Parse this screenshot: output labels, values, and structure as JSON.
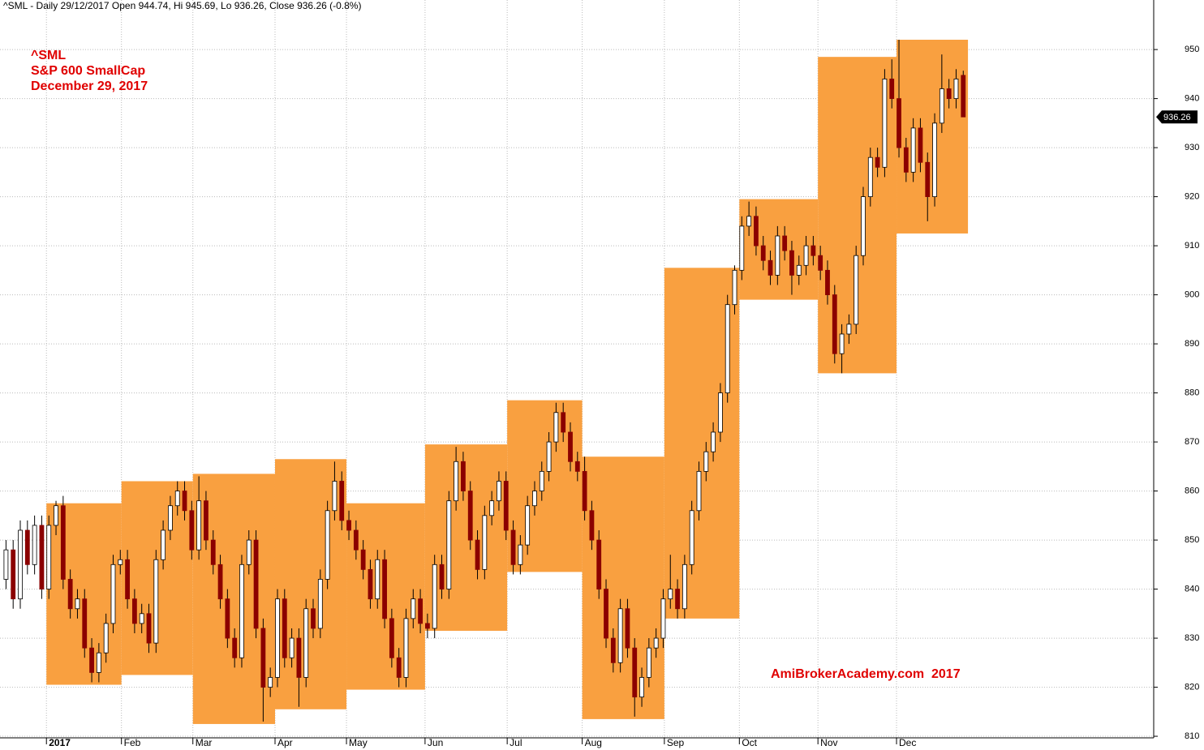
{
  "chart_data": {
    "type": "candlestick",
    "title": "^SML - Daily 29/12/2017 Open 944.74, Hi 945.69, Lo 936.26, Close 936.26 (-0.8%)",
    "annotations": [
      "^SML",
      "S&P 600 SmallCap",
      "December 29, 2017",
      "AmiBrokerAcademy.com  2017"
    ],
    "up_color": "#ffffff",
    "down_color": "#8b0000",
    "box_color": "#f9a040",
    "x": [
      -12,
      -10,
      -8,
      -6,
      -4,
      -2,
      0,
      2,
      4,
      6,
      8,
      10,
      12,
      14,
      16,
      18,
      20,
      22,
      24,
      26,
      28,
      30,
      32,
      34,
      36,
      38,
      40,
      42,
      44,
      46,
      48,
      50,
      52,
      54,
      56,
      58,
      60,
      62,
      64,
      66,
      68,
      70,
      72,
      74,
      76,
      78,
      80,
      82,
      84,
      86,
      88,
      90,
      92,
      94,
      96,
      98,
      100,
      102,
      104,
      106,
      108,
      110,
      112,
      114,
      116,
      118,
      120,
      122,
      124,
      126,
      128,
      130,
      132,
      134,
      136,
      138,
      140,
      142,
      144,
      146,
      148,
      150,
      152,
      154,
      156,
      158,
      160,
      162,
      164,
      166,
      168,
      170,
      172,
      174,
      176,
      178,
      180,
      182,
      184,
      186,
      188,
      190,
      192,
      194,
      196,
      198,
      200,
      202,
      204,
      206,
      208,
      210,
      212,
      214,
      216,
      218,
      220,
      222,
      224,
      226,
      228,
      230,
      232,
      234,
      236,
      238,
      240,
      242,
      244,
      246,
      248,
      250,
      252,
      254,
      256
    ],
    "open": [
      842,
      848,
      838,
      852,
      845,
      853,
      840,
      853,
      857,
      842,
      836,
      838,
      828,
      823,
      827,
      833,
      845,
      846,
      838,
      833,
      835,
      829,
      846,
      852,
      857,
      860,
      856,
      848,
      858,
      850,
      845,
      838,
      830,
      826,
      845,
      850,
      832,
      820,
      822,
      838,
      826,
      830,
      822,
      836,
      832,
      842,
      856,
      862,
      854,
      852,
      848,
      844,
      838,
      846,
      834,
      826,
      822,
      834,
      838,
      833,
      832,
      845,
      840,
      858,
      866,
      860,
      850,
      844,
      855,
      858,
      862,
      852,
      845,
      849,
      857,
      860,
      864,
      870,
      876,
      872,
      866,
      864,
      856,
      850,
      840,
      830,
      825,
      836,
      828,
      818,
      822,
      828,
      830,
      838,
      840,
      836,
      845,
      856,
      864,
      868,
      872,
      880,
      898,
      905,
      914,
      916,
      910,
      907,
      904,
      912,
      909,
      904,
      906,
      910,
      908,
      905,
      900,
      888,
      892,
      894,
      908,
      920,
      928,
      926,
      944,
      940,
      930,
      925,
      934,
      927,
      920,
      935,
      942,
      940,
      944.74
    ],
    "high": [
      850,
      850,
      854,
      854,
      855,
      855,
      855,
      858,
      859,
      844,
      840,
      840,
      830,
      829,
      835,
      847,
      848,
      848,
      840,
      837,
      837,
      848,
      854,
      859,
      862,
      862,
      858,
      863,
      860,
      852,
      847,
      840,
      832,
      847,
      852,
      852,
      834,
      824,
      840,
      840,
      832,
      832,
      838,
      838,
      844,
      858,
      866,
      864,
      856,
      854,
      850,
      846,
      848,
      848,
      836,
      828,
      836,
      840,
      840,
      835,
      847,
      847,
      860,
      869,
      868,
      862,
      852,
      857,
      860,
      864,
      864,
      854,
      851,
      859,
      862,
      866,
      872,
      878,
      878,
      874,
      868,
      867,
      858,
      852,
      842,
      832,
      838,
      838,
      830,
      824,
      830,
      832,
      840,
      847,
      842,
      847,
      858,
      866,
      870,
      874,
      882,
      900,
      906,
      916,
      919,
      918,
      912,
      909,
      914,
      914,
      911,
      908,
      912,
      912,
      910,
      907,
      902,
      894,
      896,
      910,
      922,
      930,
      930,
      946,
      948,
      952,
      932,
      936,
      936,
      929,
      937,
      949,
      944,
      946,
      945.69
    ],
    "low": [
      840,
      836,
      836,
      843,
      843,
      838,
      838,
      851,
      840,
      834,
      834,
      826,
      821,
      821,
      825,
      831,
      843,
      836,
      831,
      831,
      827,
      827,
      844,
      850,
      855,
      854,
      846,
      846,
      848,
      843,
      836,
      828,
      824,
      824,
      843,
      830,
      813,
      818,
      820,
      824,
      824,
      816,
      820,
      830,
      830,
      840,
      854,
      852,
      850,
      846,
      842,
      836,
      836,
      832,
      824,
      820,
      820,
      832,
      831,
      830,
      830,
      838,
      838,
      856,
      858,
      848,
      842,
      842,
      853,
      856,
      850,
      843,
      843,
      847,
      855,
      858,
      862,
      868,
      870,
      864,
      862,
      854,
      848,
      838,
      828,
      823,
      823,
      826,
      814,
      816,
      820,
      826,
      828,
      836,
      834,
      834,
      843,
      854,
      862,
      866,
      870,
      878,
      896,
      903,
      912,
      908,
      905,
      902,
      902,
      907,
      900,
      902,
      904,
      906,
      903,
      898,
      886,
      884,
      890,
      892,
      906,
      918,
      924,
      924,
      938,
      928,
      923,
      923,
      925,
      915,
      918,
      933,
      938,
      938,
      936.26
    ],
    "close": [
      848,
      838,
      852,
      845,
      853,
      840,
      853,
      857,
      842,
      836,
      838,
      828,
      823,
      827,
      833,
      845,
      846,
      838,
      833,
      835,
      829,
      846,
      852,
      857,
      860,
      856,
      848,
      858,
      850,
      845,
      838,
      830,
      826,
      845,
      850,
      832,
      820,
      822,
      838,
      826,
      830,
      822,
      836,
      832,
      842,
      856,
      862,
      854,
      852,
      848,
      844,
      838,
      846,
      834,
      826,
      822,
      834,
      838,
      833,
      832,
      845,
      840,
      858,
      866,
      860,
      850,
      844,
      855,
      858,
      862,
      852,
      845,
      849,
      857,
      860,
      864,
      870,
      876,
      872,
      866,
      864,
      856,
      850,
      840,
      830,
      825,
      836,
      828,
      818,
      822,
      828,
      830,
      838,
      840,
      836,
      845,
      856,
      864,
      868,
      872,
      880,
      898,
      905,
      914,
      916,
      910,
      907,
      904,
      912,
      909,
      904,
      906,
      910,
      908,
      905,
      900,
      888,
      892,
      894,
      908,
      920,
      928,
      926,
      944,
      940,
      930,
      925,
      934,
      927,
      920,
      935,
      942,
      940,
      944,
      936.26
    ],
    "month_ranges": {
      "start": [
        0,
        21,
        41,
        64,
        84,
        106,
        129,
        150,
        173,
        194,
        216,
        238
      ],
      "end": [
        21,
        41,
        64,
        84,
        106,
        129,
        150,
        173,
        194,
        216,
        238,
        258
      ],
      "high": [
        857.5,
        862,
        863.5,
        866.5,
        857.5,
        869.5,
        878.5,
        867,
        905.5,
        919.5,
        948.5,
        952
      ],
      "low": [
        820.5,
        822.5,
        812.5,
        815.5,
        819.5,
        831.5,
        843.5,
        813.5,
        834,
        899,
        884,
        912.5
      ]
    },
    "xlim": [
      -13,
      310
    ],
    "xticks": [
      {
        "value": 0,
        "label": "2017"
      },
      {
        "value": 21,
        "label": "Feb"
      },
      {
        "value": 41,
        "label": "Mar"
      },
      {
        "value": 64,
        "label": "Apr"
      },
      {
        "value": 84,
        "label": "May"
      },
      {
        "value": 106,
        "label": "Jun"
      },
      {
        "value": 129,
        "label": "Jul"
      },
      {
        "value": 150,
        "label": "Aug"
      },
      {
        "value": 173,
        "label": "Sep"
      },
      {
        "value": 194,
        "label": "Oct"
      },
      {
        "value": 216,
        "label": "Nov"
      },
      {
        "value": 238,
        "label": "Dec"
      }
    ],
    "ylim": [
      807.2,
      960.1
    ],
    "yticks": [
      810,
      820,
      830,
      840,
      850,
      860,
      870,
      880,
      890,
      900,
      910,
      920,
      930,
      940,
      950
    ],
    "grid": true
  }
}
